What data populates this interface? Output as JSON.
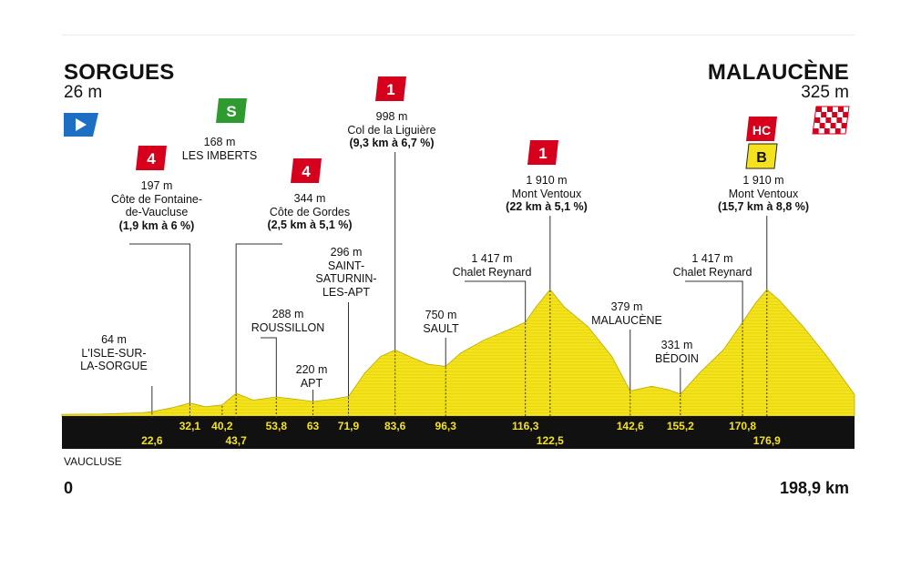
{
  "start": {
    "name": "SORGUES",
    "altitude": "26 m"
  },
  "finish": {
    "name": "MALAUCÈNE",
    "altitude": "325 m"
  },
  "department": "VAUCLUSE",
  "distance_start": "0",
  "distance_total": "198,9 km",
  "colors": {
    "profile": "#f4e31c",
    "band": "#111111",
    "km_text": "#f4e31c",
    "climb_badge": "#d6001c",
    "sprint_badge": "#2f9a2f",
    "start_flag": "#1d6fc4",
    "bonus_badge": "#f4e31c"
  },
  "chart_data": {
    "type": "area",
    "xlabel": "",
    "ylabel": "",
    "xlim": [
      0,
      198.9
    ],
    "ylim": [
      0,
      2000
    ],
    "x": [
      0,
      10,
      20,
      22.6,
      28,
      32.1,
      36,
      40.2,
      43.7,
      48,
      53.8,
      58,
      63,
      68,
      71.9,
      76,
      80,
      83.6,
      88,
      92,
      96.3,
      100,
      106,
      112,
      116.3,
      119,
      122.5,
      126,
      132,
      138,
      142.6,
      148,
      152,
      155.2,
      160,
      166,
      170.8,
      174,
      176.9,
      180,
      186,
      192,
      198.9
    ],
    "y": [
      26,
      30,
      50,
      64,
      130,
      197,
      140,
      168,
      344,
      240,
      288,
      260,
      220,
      255,
      296,
      650,
      900,
      998,
      880,
      780,
      750,
      950,
      1150,
      1300,
      1417,
      1650,
      1910,
      1650,
      1350,
      900,
      379,
      450,
      400,
      331,
      650,
      1000,
      1417,
      1700,
      1910,
      1750,
      1350,
      900,
      325
    ],
    "km_markers": [
      "22,6",
      "32,1",
      "40,2",
      "43,7",
      "53,8",
      "63",
      "71,9",
      "83,6",
      "96,3",
      "116,3",
      "122,5",
      "142,6",
      "155,2",
      "170,8",
      "176,9"
    ],
    "km_values": [
      22.6,
      32.1,
      40.2,
      43.7,
      53.8,
      63,
      71.9,
      83.6,
      96.3,
      116.3,
      122.5,
      142.6,
      155.2,
      170.8,
      176.9
    ],
    "km_rows": [
      "low",
      "high",
      "high",
      "low",
      "high",
      "high",
      "high",
      "high",
      "high",
      "high",
      "low",
      "high",
      "high",
      "high",
      "low"
    ],
    "annotations": [
      {
        "km": 22.6,
        "lines": [
          "64 m",
          "L'ISLE-SUR-",
          "LA-SORGUE"
        ],
        "bold_from": -1
      },
      {
        "km": 32.1,
        "lines": [
          "197 m",
          "Côte de Fontaine-",
          "de-Vaucluse",
          "(1,9 km à 6 %)"
        ],
        "bold_from": 3,
        "badge": "4",
        "badge_type": "climb"
      },
      {
        "km": 40.2,
        "lines": [
          "168 m",
          "LES IMBERTS"
        ],
        "bold_from": -1,
        "badge": "S",
        "badge_type": "sprint"
      },
      {
        "km": 43.7,
        "lines": [
          "344 m",
          "Côte de Gordes",
          "(2,5 km à 5,1 %)"
        ],
        "bold_from": 2,
        "badge": "4",
        "badge_type": "climb"
      },
      {
        "km": 53.8,
        "lines": [
          "288 m",
          "ROUSSILLON"
        ],
        "bold_from": -1
      },
      {
        "km": 63,
        "lines": [
          "220 m",
          "APT"
        ],
        "bold_from": -1
      },
      {
        "km": 71.9,
        "lines": [
          "296 m",
          "SAINT-",
          "SATURNIN-",
          "LES-APT"
        ],
        "bold_from": -1
      },
      {
        "km": 83.6,
        "lines": [
          "998 m",
          "Col de la Liguière",
          "(9,3 km à 6,7 %)"
        ],
        "bold_from": 2,
        "badge": "1",
        "badge_type": "climb"
      },
      {
        "km": 96.3,
        "lines": [
          "750 m",
          "SAULT"
        ],
        "bold_from": -1
      },
      {
        "km": 116.3,
        "lines": [
          "1 417 m",
          "Chalet Reynard"
        ],
        "bold_from": -1
      },
      {
        "km": 122.5,
        "lines": [
          "1 910 m",
          "Mont Ventoux",
          "(22 km à 5,1 %)"
        ],
        "bold_from": 2,
        "badge": "1",
        "badge_type": "climb"
      },
      {
        "km": 142.6,
        "lines": [
          "379 m",
          "MALAUCÈNE"
        ],
        "bold_from": -1
      },
      {
        "km": 155.2,
        "lines": [
          "331 m",
          "BÉDOIN"
        ],
        "bold_from": -1
      },
      {
        "km": 170.8,
        "lines": [
          "1 417 m",
          "Chalet Reynard"
        ],
        "bold_from": -1
      },
      {
        "km": 176.9,
        "lines": [
          "1 910 m",
          "Mont Ventoux",
          "(15,7 km à 8,8 %)"
        ],
        "bold_from": 2,
        "badge": "HC",
        "badge_type": "climb",
        "badge2": "B"
      }
    ]
  }
}
